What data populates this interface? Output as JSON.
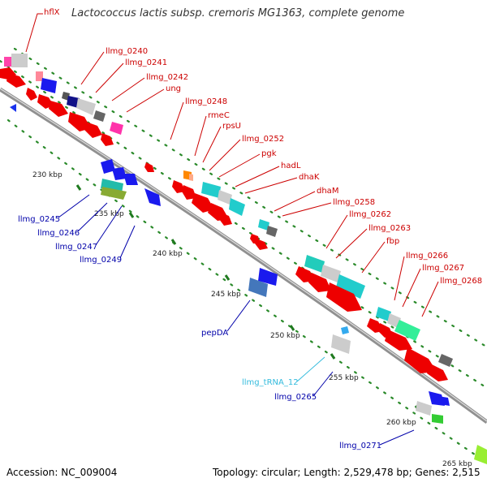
{
  "title": "Lactococcus lactis subsp. cremoris MG1363, complete genome",
  "footer": {
    "accession": "Accession: NC_009004",
    "topology": "Topology: circular; Length: 2,529,478 bp; Genes: 2,515"
  },
  "colors": {
    "forward_gene": "#ff0000",
    "reverse_gene": "#0000cc",
    "trna": "#33bbdd",
    "label_forward": "#cc0000",
    "label_reverse": "#0000aa",
    "backbone": "#909090",
    "tick": "#2a8a2a"
  },
  "kbp_labels": [
    "230 kbp",
    "235 kbp",
    "240 kbp",
    "245 kbp",
    "250 kbp",
    "255 kbp",
    "260 kbp",
    "265 kbp"
  ],
  "labels_forward": [
    "hflX",
    "llmg_0240",
    "llmg_0241",
    "llmg_0242",
    "ung",
    "llmg_0248",
    "rmeC",
    "rpsU",
    "llmg_0252",
    "pgk",
    "hadL",
    "dhaK",
    "dhaM",
    "llmg_0258",
    "llmg_0262",
    "llmg_0263",
    "fbp",
    "llmg_0266",
    "llmg_0267",
    "llmg_0268"
  ],
  "labels_reverse": [
    "llmg_0245",
    "llmg_0246",
    "llmg_0247",
    "llmg_0249",
    "pepDA",
    "llmg_tRNA_12",
    "llmg_0265",
    "llmg_0271"
  ]
}
